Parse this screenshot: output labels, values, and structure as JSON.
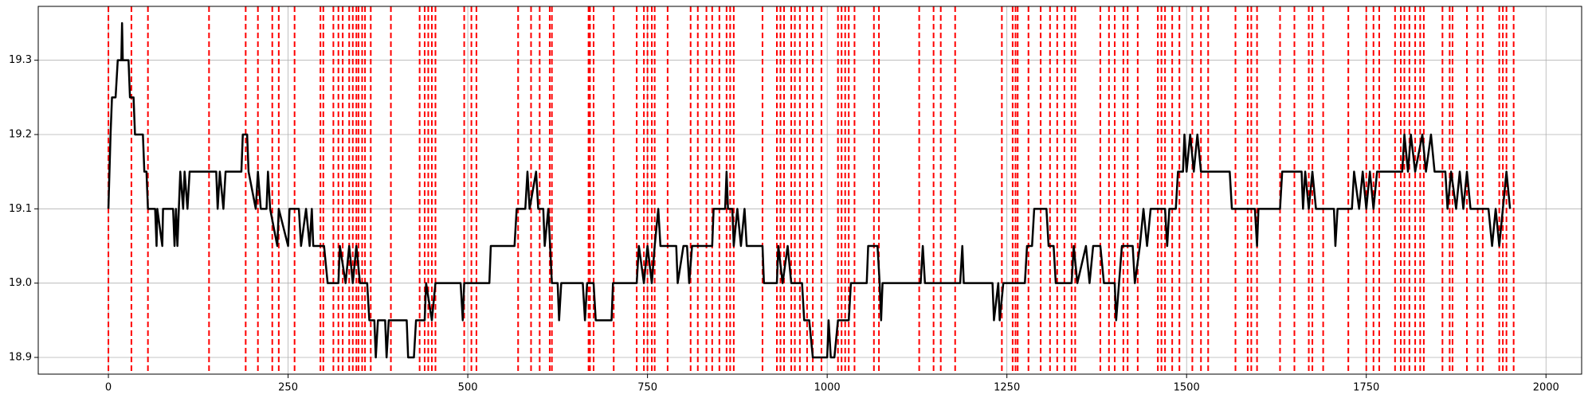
{
  "chart_data": {
    "type": "line",
    "x": [
      0,
      3,
      5,
      10,
      13,
      18,
      19,
      20,
      28,
      30,
      35,
      37,
      48,
      50,
      53,
      55,
      65,
      67,
      68,
      75,
      76,
      90,
      92,
      94,
      96,
      98,
      100,
      104,
      106,
      110,
      113,
      150,
      152,
      155,
      160,
      163,
      185,
      187,
      193,
      195,
      205,
      208,
      212,
      220,
      222,
      225,
      235,
      237,
      250,
      252,
      265,
      268,
      275,
      280,
      283,
      285,
      300,
      305,
      320,
      322,
      330,
      335,
      340,
      345,
      350,
      360,
      363,
      370,
      372,
      375,
      385,
      387,
      390,
      415,
      417,
      425,
      428,
      440,
      442,
      450,
      455,
      490,
      493,
      495,
      530,
      532,
      565,
      568,
      580,
      583,
      586,
      595,
      598,
      605,
      607,
      612,
      617,
      625,
      627,
      630,
      660,
      663,
      666,
      675,
      678,
      700,
      702,
      735,
      738,
      745,
      750,
      756,
      760,
      765,
      768,
      790,
      792,
      800,
      805,
      808,
      812,
      840,
      842,
      858,
      860,
      862,
      868,
      870,
      875,
      880,
      885,
      888,
      910,
      912,
      930,
      932,
      938,
      945,
      950,
      965,
      968,
      975,
      980,
      1000,
      1002,
      1005,
      1010,
      1015,
      1030,
      1033,
      1055,
      1057,
      1070,
      1073,
      1075,
      1077,
      1130,
      1133,
      1136,
      1185,
      1188,
      1190,
      1230,
      1232,
      1238,
      1240,
      1245,
      1275,
      1278,
      1285,
      1288,
      1305,
      1308,
      1315,
      1318,
      1340,
      1343,
      1348,
      1360,
      1365,
      1370,
      1380,
      1385,
      1400,
      1402,
      1406,
      1410,
      1425,
      1428,
      1435,
      1440,
      1445,
      1450,
      1470,
      1473,
      1476,
      1485,
      1488,
      1495,
      1497,
      1500,
      1505,
      1510,
      1515,
      1520,
      1560,
      1563,
      1595,
      1598,
      1600,
      1630,
      1633,
      1660,
      1662,
      1665,
      1670,
      1675,
      1680,
      1705,
      1707,
      1710,
      1730,
      1733,
      1740,
      1745,
      1750,
      1755,
      1760,
      1765,
      1800,
      1803,
      1808,
      1812,
      1818,
      1828,
      1833,
      1840,
      1845,
      1860,
      1863,
      1868,
      1875,
      1880,
      1885,
      1890,
      1895,
      1920,
      1925,
      1930,
      1935,
      1940,
      1945,
      1950
    ],
    "series": [
      {
        "color": "#000000",
        "values": [
          19.1,
          19.2,
          19.25,
          19.25,
          19.3,
          19.3,
          19.35,
          19.3,
          19.3,
          19.25,
          19.25,
          19.2,
          19.2,
          19.15,
          19.15,
          19.1,
          19.1,
          19.05,
          19.1,
          19.05,
          19.1,
          19.1,
          19.05,
          19.1,
          19.05,
          19.1,
          19.15,
          19.1,
          19.15,
          19.1,
          19.15,
          19.15,
          19.1,
          19.15,
          19.1,
          19.15,
          19.15,
          19.2,
          19.2,
          19.15,
          19.1,
          19.15,
          19.1,
          19.1,
          19.15,
          19.1,
          19.05,
          19.1,
          19.05,
          19.1,
          19.1,
          19.05,
          19.1,
          19.05,
          19.1,
          19.05,
          19.05,
          19.0,
          19.0,
          19.05,
          19.0,
          19.05,
          19.0,
          19.05,
          19.0,
          19.0,
          18.95,
          18.95,
          18.9,
          18.95,
          18.95,
          18.9,
          18.95,
          18.95,
          18.9,
          18.9,
          18.95,
          18.95,
          19.0,
          18.95,
          19.0,
          19.0,
          18.95,
          19.0,
          19.0,
          19.05,
          19.05,
          19.1,
          19.1,
          19.15,
          19.1,
          19.15,
          19.1,
          19.1,
          19.05,
          19.1,
          19.0,
          19.0,
          18.95,
          19.0,
          19.0,
          18.95,
          19.0,
          19.0,
          18.95,
          18.95,
          19.0,
          19.0,
          19.05,
          19.0,
          19.05,
          19.0,
          19.05,
          19.1,
          19.05,
          19.05,
          19.0,
          19.05,
          19.05,
          19.0,
          19.05,
          19.05,
          19.1,
          19.1,
          19.15,
          19.1,
          19.1,
          19.05,
          19.1,
          19.05,
          19.1,
          19.05,
          19.05,
          19.0,
          19.0,
          19.05,
          19.0,
          19.05,
          19.0,
          19.0,
          18.95,
          18.95,
          18.9,
          18.9,
          18.95,
          18.9,
          18.9,
          18.95,
          18.95,
          19.0,
          19.0,
          19.05,
          19.05,
          19.0,
          18.95,
          19.0,
          19.0,
          19.05,
          19.0,
          19.0,
          19.05,
          19.0,
          19.0,
          18.95,
          19.0,
          18.95,
          19.0,
          19.0,
          19.05,
          19.05,
          19.1,
          19.1,
          19.05,
          19.05,
          19.0,
          19.0,
          19.05,
          19.0,
          19.05,
          19.0,
          19.05,
          19.05,
          19.0,
          19.0,
          18.95,
          19.0,
          19.05,
          19.05,
          19.0,
          19.05,
          19.1,
          19.05,
          19.1,
          19.1,
          19.05,
          19.1,
          19.1,
          19.15,
          19.15,
          19.2,
          19.15,
          19.2,
          19.15,
          19.2,
          19.15,
          19.15,
          19.1,
          19.1,
          19.05,
          19.1,
          19.1,
          19.15,
          19.15,
          19.1,
          19.15,
          19.1,
          19.15,
          19.1,
          19.1,
          19.05,
          19.1,
          19.1,
          19.15,
          19.1,
          19.15,
          19.1,
          19.15,
          19.1,
          19.15,
          19.15,
          19.2,
          19.15,
          19.2,
          19.15,
          19.2,
          19.15,
          19.2,
          19.15,
          19.15,
          19.1,
          19.15,
          19.1,
          19.15,
          19.1,
          19.15,
          19.1,
          19.1,
          19.05,
          19.1,
          19.05,
          19.1,
          19.15,
          19.1
        ]
      }
    ],
    "vlines": {
      "color": "#ff0000",
      "x": [
        0,
        32,
        55,
        140,
        191,
        208,
        228,
        237,
        259,
        295,
        299,
        313,
        320,
        326,
        335,
        340,
        345,
        348,
        353,
        357,
        365,
        393,
        433,
        440,
        445,
        450,
        455,
        495,
        505,
        512,
        570,
        588,
        600,
        614,
        617,
        668,
        670,
        675,
        703,
        735,
        745,
        750,
        756,
        760,
        778,
        810,
        820,
        832,
        840,
        850,
        860,
        865,
        870,
        910,
        930,
        935,
        940,
        950,
        955,
        962,
        972,
        980,
        992,
        1015,
        1020,
        1025,
        1030,
        1038,
        1065,
        1072,
        1128,
        1148,
        1158,
        1178,
        1243,
        1258,
        1262,
        1265,
        1280,
        1297,
        1310,
        1320,
        1330,
        1340,
        1345,
        1380,
        1392,
        1400,
        1412,
        1418,
        1432,
        1460,
        1465,
        1470,
        1480,
        1490,
        1508,
        1520,
        1530,
        1568,
        1585,
        1590,
        1598,
        1630,
        1650,
        1670,
        1675,
        1690,
        1725,
        1750,
        1760,
        1768,
        1790,
        1798,
        1803,
        1810,
        1818,
        1825,
        1830,
        1856,
        1866,
        1870,
        1890,
        1905,
        1912,
        1935,
        1940,
        1945,
        1955
      ]
    },
    "xlim": [
      -97.6,
      2049.6
    ],
    "ylim": [
      18.8775,
      19.3725
    ],
    "xticks": [
      0,
      250,
      500,
      750,
      1000,
      1250,
      1500,
      1750,
      2000
    ],
    "yticks": [
      18.9,
      {
        "value": 19,
        "label": "19.0"
      },
      19.1,
      19.2,
      19.3
    ],
    "grid": true
  }
}
